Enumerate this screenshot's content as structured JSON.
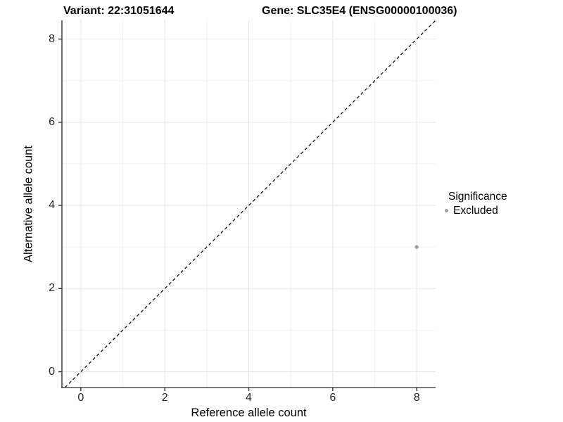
{
  "chart_data": {
    "type": "scatter",
    "title_left": "Variant: 22:31051644",
    "title_right": "Gene: SLC35E4 (ENSG00000100036)",
    "xlabel": "Reference allele count",
    "ylabel": "Alternative allele count",
    "xlim": [
      -0.45,
      8.45
    ],
    "ylim": [
      -0.38,
      8.45
    ],
    "x_ticks": [
      0,
      2,
      4,
      6,
      8
    ],
    "y_ticks": [
      0,
      2,
      4,
      6,
      8
    ],
    "x_minor_ticks": [
      1,
      3,
      5,
      7
    ],
    "y_minor_ticks": [
      1,
      3,
      5,
      7
    ],
    "grid": "on",
    "legend_position": "right",
    "legend_title": "Significance",
    "series": [
      {
        "name": "Excluded",
        "color": "#a0a0a0",
        "points": [
          [
            8,
            3
          ]
        ]
      }
    ],
    "reference_line": {
      "kind": "identity y=x",
      "style": "dashed",
      "color": "#000000"
    }
  },
  "style": {
    "grid_major_color": "#e5e5e5",
    "grid_minor_color": "#f2f2f2",
    "axis_line_color": "#4d4d4d",
    "tick_color": "#333333",
    "point_color": "#a0a0a0",
    "legend_dot_color": "#9e9e9e"
  }
}
